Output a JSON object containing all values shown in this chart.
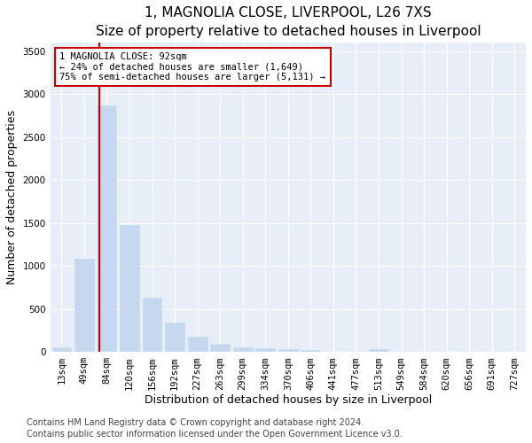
{
  "title": "1, MAGNOLIA CLOSE, LIVERPOOL, L26 7XS",
  "subtitle": "Size of property relative to detached houses in Liverpool",
  "xlabel": "Distribution of detached houses by size in Liverpool",
  "ylabel": "Number of detached properties",
  "footnote1": "Contains HM Land Registry data © Crown copyright and database right 2024.",
  "footnote2": "Contains public sector information licensed under the Open Government Licence v3.0.",
  "categories": [
    "13sqm",
    "49sqm",
    "84sqm",
    "120sqm",
    "156sqm",
    "192sqm",
    "227sqm",
    "263sqm",
    "299sqm",
    "334sqm",
    "370sqm",
    "406sqm",
    "441sqm",
    "477sqm",
    "513sqm",
    "549sqm",
    "584sqm",
    "620sqm",
    "656sqm",
    "691sqm",
    "727sqm"
  ],
  "values": [
    50,
    1080,
    2870,
    1480,
    630,
    340,
    175,
    90,
    55,
    40,
    30,
    20,
    0,
    0,
    30,
    0,
    0,
    0,
    0,
    0,
    0
  ],
  "bar_color": "#c5d8f0",
  "bar_edge_color": "#c5d8f0",
  "red_line_index": 2,
  "annotation_text": "1 MAGNOLIA CLOSE: 92sqm\n← 24% of detached houses are smaller (1,649)\n75% of semi-detached houses are larger (5,131) →",
  "annotation_box_color": "#ffffff",
  "annotation_box_edge": "#cc0000",
  "red_line_color": "#cc0000",
  "ylim": [
    0,
    3600
  ],
  "yticks": [
    0,
    500,
    1000,
    1500,
    2000,
    2500,
    3000,
    3500
  ],
  "background_color": "#e8eef8",
  "grid_color": "#ffffff",
  "title_fontsize": 11,
  "subtitle_fontsize": 9.5,
  "axis_label_fontsize": 9,
  "tick_fontsize": 7.5,
  "footnote_fontsize": 7
}
